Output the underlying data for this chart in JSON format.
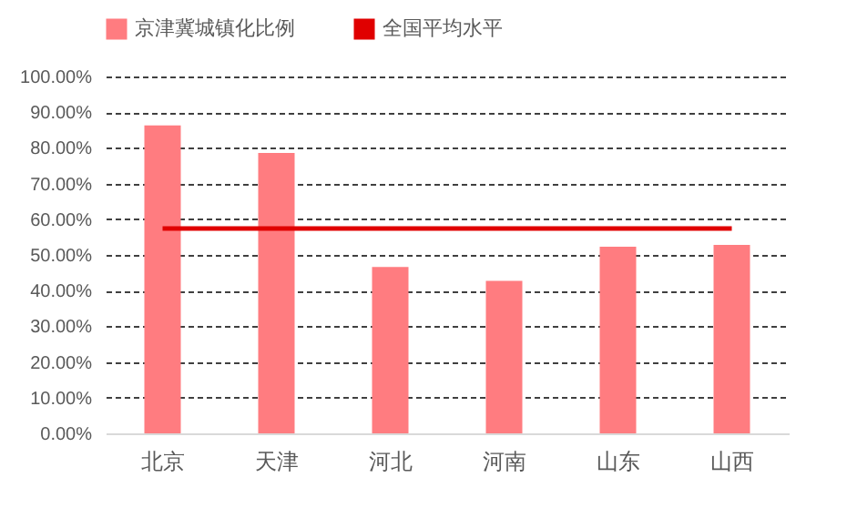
{
  "chart_data": {
    "type": "bar",
    "categories": [
      "北京",
      "天津",
      "河北",
      "河南",
      "山东",
      "山西"
    ],
    "series": [
      {
        "name": "京津冀城镇化比例",
        "color": "#ff7c80",
        "values": [
          86.3,
          78.6,
          46.6,
          42.7,
          52.3,
          52.8
        ]
      },
      {
        "name": "全国平均水平",
        "type": "line",
        "color": "#e00000",
        "values": [
          57.4,
          57.4,
          57.4,
          57.4,
          57.4,
          57.4
        ]
      }
    ],
    "ylim": [
      0,
      100
    ],
    "yticks": [
      {
        "value": 0,
        "label": "0.00%"
      },
      {
        "value": 10,
        "label": "10.00%"
      },
      {
        "value": 20,
        "label": "20.00%"
      },
      {
        "value": 30,
        "label": "30.00%"
      },
      {
        "value": 40,
        "label": "40.00%"
      },
      {
        "value": 50,
        "label": "50.00%"
      },
      {
        "value": 60,
        "label": "60.00%"
      },
      {
        "value": 70,
        "label": "70.00%"
      },
      {
        "value": 80,
        "label": "80.00%"
      },
      {
        "value": 90,
        "label": "90.00%"
      },
      {
        "value": 100,
        "label": "100.00%"
      }
    ],
    "grid": "y",
    "legend": "top"
  }
}
